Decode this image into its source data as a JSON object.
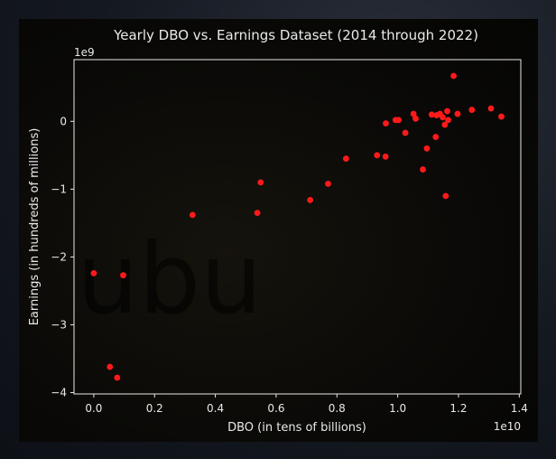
{
  "chart_data": {
    "type": "scatter",
    "title": "Yearly DBO vs. Earnings Dataset (2014 through 2022)",
    "xlabel": "DBO (in tens of billions)",
    "ylabel": "Earnings (in hundreds of millions)",
    "x_multiplier": "1e10",
    "y_multiplier": "1e9",
    "xlim": [
      -0.065,
      1.405
    ],
    "ylim": [
      -4.02,
      0.91
    ],
    "x_ticks": [
      0.0,
      0.2,
      0.4,
      0.6,
      0.8,
      1.0,
      1.2,
      1.4
    ],
    "x_tick_labels": [
      "0.0",
      "0.2",
      "0.4",
      "0.6",
      "0.8",
      "1.0",
      "1.2",
      "1.4"
    ],
    "y_ticks": [
      -4,
      -3,
      -2,
      -1,
      0
    ],
    "y_tick_labels": [
      "−4",
      "−3",
      "−2",
      "−1",
      "0"
    ],
    "grid": false,
    "marker_color": "#ff1a1a",
    "points": [
      {
        "x": 0.0,
        "y": -2.24
      },
      {
        "x": 0.053,
        "y": -3.62
      },
      {
        "x": 0.077,
        "y": -3.78
      },
      {
        "x": 0.097,
        "y": -2.27
      },
      {
        "x": 0.325,
        "y": -1.38
      },
      {
        "x": 0.538,
        "y": -1.35
      },
      {
        "x": 0.549,
        "y": -0.9
      },
      {
        "x": 0.712,
        "y": -1.16
      },
      {
        "x": 0.771,
        "y": -0.92
      },
      {
        "x": 0.83,
        "y": -0.55
      },
      {
        "x": 0.932,
        "y": -0.5
      },
      {
        "x": 0.96,
        "y": -0.52
      },
      {
        "x": 0.961,
        "y": -0.03
      },
      {
        "x": 0.993,
        "y": 0.02
      },
      {
        "x": 1.003,
        "y": 0.02
      },
      {
        "x": 1.025,
        "y": -0.17
      },
      {
        "x": 1.052,
        "y": 0.11
      },
      {
        "x": 1.059,
        "y": 0.04
      },
      {
        "x": 1.083,
        "y": -0.71
      },
      {
        "x": 1.096,
        "y": -0.4
      },
      {
        "x": 1.112,
        "y": 0.1
      },
      {
        "x": 1.125,
        "y": -0.23
      },
      {
        "x": 1.128,
        "y": 0.09
      },
      {
        "x": 1.139,
        "y": 0.11
      },
      {
        "x": 1.148,
        "y": 0.06
      },
      {
        "x": 1.155,
        "y": -0.05
      },
      {
        "x": 1.158,
        "y": -1.1
      },
      {
        "x": 1.163,
        "y": 0.15
      },
      {
        "x": 1.166,
        "y": 0.02
      },
      {
        "x": 1.184,
        "y": 0.67
      },
      {
        "x": 1.197,
        "y": 0.11
      },
      {
        "x": 1.244,
        "y": 0.17
      },
      {
        "x": 1.307,
        "y": 0.19
      },
      {
        "x": 1.341,
        "y": 0.07
      }
    ]
  },
  "watermark_text": "ubu"
}
